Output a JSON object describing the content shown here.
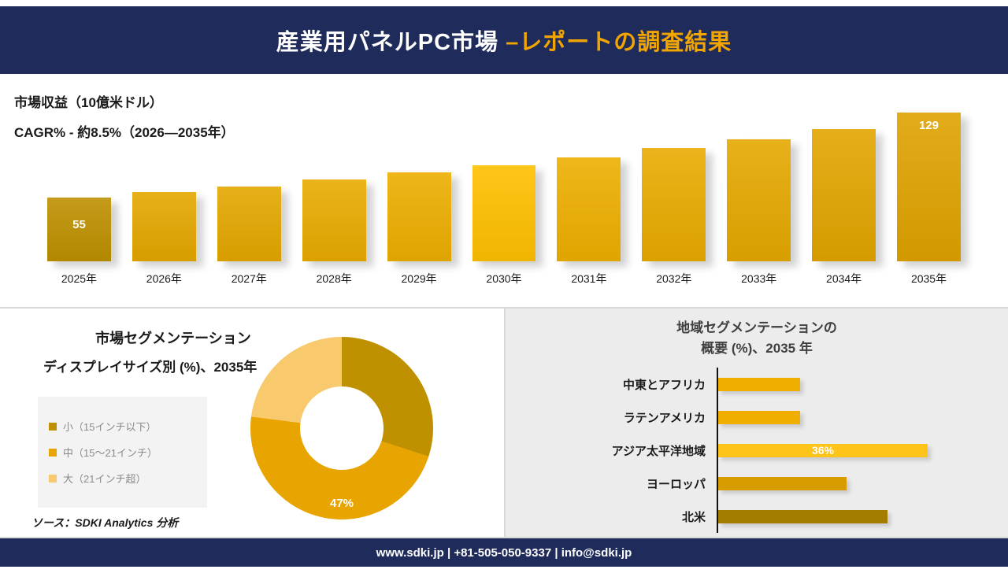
{
  "header": {
    "title_main": "産業用パネルPC市場 ",
    "title_accent": "–レポートの調査結果"
  },
  "footer": {
    "text": "www.sdki.jp | +81-505-050-9337 | info@sdki.jp"
  },
  "source": {
    "text": "ソース：SDKI Analytics 分析"
  },
  "colors": {
    "navy": "#1F2B5B",
    "gold_accent": "#F0A500",
    "panel_gray": "#ECECEC"
  },
  "chart_data": [
    {
      "type": "bar",
      "title": "市場収益（10億米ドル）",
      "subtitle": "CAGR% - 約8.5%（2026―2035年）",
      "categories": [
        "2025年",
        "2026年",
        "2027年",
        "2028年",
        "2029年",
        "2030年",
        "2031年",
        "2032年",
        "2033年",
        "2034年",
        "2035年"
      ],
      "values": [
        55,
        60,
        65,
        71,
        77,
        83,
        90,
        98,
        106,
        115,
        129
      ],
      "ylim": [
        0,
        140
      ],
      "xlabel": "",
      "ylabel": "市場収益（10億米ドル）",
      "grid": false,
      "legend": false,
      "bar_colors": [
        "#BD9000",
        "#E4A700",
        "#E4A700",
        "#E8AB00",
        "#ECAE00",
        "#FFC000",
        "#EDAF00",
        "#E9AB00",
        "#E5A800",
        "#E2A500",
        "#DFA200"
      ],
      "value_labels": [
        {
          "index": 0,
          "text": "55",
          "position": "center"
        },
        {
          "index": 10,
          "text": "129",
          "position": "top"
        }
      ]
    },
    {
      "type": "pie",
      "title": "市場セグメンテーション",
      "subtitle": "ディスプレイサイズ別 (%)、2035年",
      "segments": [
        {
          "label": "小（15インチ以下）",
          "value": 30,
          "color": "#BF9000"
        },
        {
          "label": "中（15～21インチ）",
          "value": 47,
          "color": "#E8A400"
        },
        {
          "label": "大（21インチ超）",
          "value": 23,
          "color": "#F8C96D"
        }
      ],
      "center_label": "47%",
      "legend_position": "left"
    },
    {
      "type": "bar-horizontal",
      "title_line1": "地域セグメンテーションの",
      "title_line2": "概要 (%)、2035 年",
      "categories": [
        "中東とアフリカ",
        "ラテンアメリカ",
        "アジア太平洋地域",
        "ヨーロッパ",
        "北米"
      ],
      "values": [
        14,
        14,
        36,
        22,
        29
      ],
      "bar_colors": [
        "#F0AF00",
        "#F0AF00",
        "#FFC41A",
        "#D99C00",
        "#A37D00"
      ],
      "value_labels": [
        {
          "index": 2,
          "text": "36%"
        }
      ]
    }
  ]
}
